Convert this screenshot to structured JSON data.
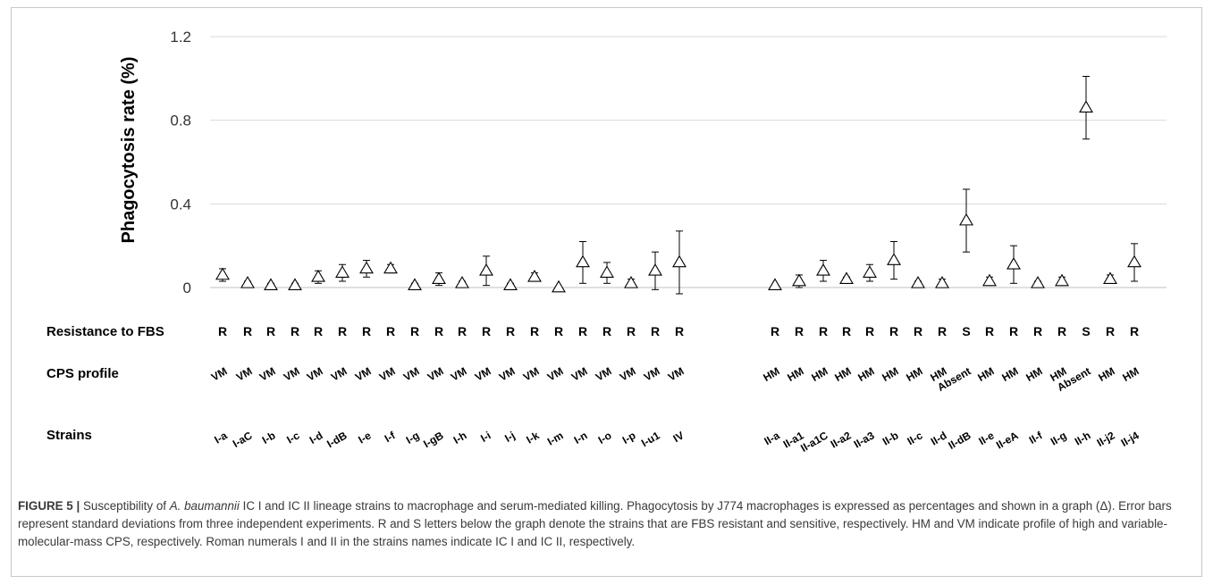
{
  "chart_data": {
    "type": "scatter",
    "ylabel": "Phagocytosis rate (%)",
    "ylim": [
      0,
      1.2
    ],
    "yticks": [
      "0",
      "0.4",
      "0.8",
      "1.2"
    ],
    "marker": "open-triangle",
    "grid": true,
    "row_labels": {
      "resistance": "Resistance to FBS",
      "cps": "CPS profile",
      "strains": "Strains"
    },
    "groups": [
      {
        "strains": [
          "I-a",
          "I-aC",
          "I-b",
          "I-c",
          "I-d",
          "I-dB",
          "I-e",
          "I-f",
          "I-g",
          "I-gB",
          "I-h",
          "I-i",
          "I-j",
          "I-k",
          "I-m",
          "I-n",
          "I-o",
          "I-p",
          "I-u1",
          "IV"
        ],
        "values": [
          0.06,
          0.02,
          0.01,
          0.01,
          0.05,
          0.07,
          0.09,
          0.09,
          0.01,
          0.04,
          0.02,
          0.08,
          0.01,
          0.05,
          0.0,
          0.12,
          0.07,
          0.02,
          0.08,
          0.12
        ],
        "errors": [
          0.03,
          0.01,
          0.01,
          0.01,
          0.03,
          0.04,
          0.04,
          0.02,
          0.01,
          0.03,
          0.01,
          0.07,
          0.01,
          0.02,
          0.0,
          0.1,
          0.05,
          0.02,
          0.09,
          0.15
        ],
        "resistance": [
          "R",
          "R",
          "R",
          "R",
          "R",
          "R",
          "R",
          "R",
          "R",
          "R",
          "R",
          "R",
          "R",
          "R",
          "R",
          "R",
          "R",
          "R",
          "R",
          "R"
        ],
        "cps": [
          "VM",
          "VM",
          "VM",
          "VM",
          "VM",
          "VM",
          "VM",
          "VM",
          "VM",
          "VM",
          "VM",
          "VM",
          "VM",
          "VM",
          "VM",
          "VM",
          "VM",
          "VM",
          "VM",
          "VM"
        ]
      },
      {
        "strains": [
          "II-a",
          "II-a1",
          "II-a1C",
          "II-a2",
          "II-a3",
          "II-b",
          "II-c",
          "II-d",
          "II-dB",
          "II-e",
          "II-eA",
          "II-f",
          "II-g",
          "II-h",
          "II-j2",
          "II-j4"
        ],
        "values": [
          0.01,
          0.03,
          0.08,
          0.04,
          0.07,
          0.13,
          0.02,
          0.02,
          0.32,
          0.03,
          0.11,
          0.02,
          0.03,
          0.86,
          0.04,
          0.12
        ],
        "errors": [
          0.0,
          0.03,
          0.05,
          0.01,
          0.04,
          0.09,
          0.01,
          0.02,
          0.15,
          0.02,
          0.09,
          0.01,
          0.02,
          0.15,
          0.02,
          0.09
        ],
        "resistance": [
          "R",
          "R",
          "R",
          "R",
          "R",
          "R",
          "R",
          "R",
          "S",
          "R",
          "R",
          "R",
          "R",
          "S",
          "R",
          "R"
        ],
        "cps": [
          "HM",
          "HM",
          "HM",
          "HM",
          "HM",
          "HM",
          "HM",
          "HM",
          "Absent",
          "HM",
          "HM",
          "HM",
          "HM",
          "Absent",
          "HM",
          "HM"
        ]
      }
    ]
  },
  "caption": {
    "label": "FIGURE 5 |",
    "text_1": " Susceptibility of ",
    "italic": "A. baumannii",
    "text_2": " IC I and IC II lineage strains to macrophage and serum-mediated killing. Phagocytosis by J774 macrophages is expressed as percentages and shown in a graph (Δ). Error bars represent standard deviations from three independent experiments. R and S letters below the graph denote the strains that are FBS resistant and sensitive, respectively. HM and VM indicate profile of high and variable-molecular-mass CPS, respectively. Roman numerals I and II in the strains names indicate IC I and IC II, respectively."
  }
}
